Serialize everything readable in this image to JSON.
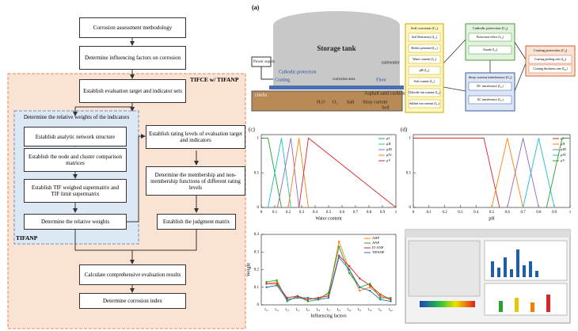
{
  "flowchart": {
    "boxes": [
      "Corrosion assessment methodology",
      "Determine influencing factors on corrosion",
      "Establish evaluation target and indicator sets",
      "Establish analytic network structure",
      "Establish the node and cluster comparison matrices",
      "Establish TIF weighed supermatrix and TIF limit supermatrix",
      "Determine the relative weights",
      "Establish rating levels of evaluation target and indicators",
      "Determine the membership and non-membership functions of different rating levels",
      "Establish the judgment matrix",
      "Calculate comprehensive evaluation results",
      "Determine corrosion index"
    ],
    "outer_label": "TIFCE w/ TIFANP",
    "inner_title": "Determine the relative weights of the indicators",
    "inner_label": "TIFANP"
  },
  "diagram_a": {
    "panel": "(a)",
    "labels": [
      "Storage tank",
      "Coating",
      "Floor",
      "rainwater",
      "Power supply",
      "Cathodic protection",
      "corrosion area",
      "Asphalt sand cushion",
      "cracks",
      "H₂O",
      "O₂",
      "Salt",
      "Stray current",
      "Soil"
    ]
  },
  "diagram_b": {
    "clusters": [
      {
        "title": "Soil corrosion (C₁)",
        "items": [
          "Soil Resistivity (I₁₁)",
          "Redox potential (I₁₂)",
          "Water content (I₁₃)",
          "pH (I₁₄)",
          "Salt content (I₁₅)",
          "Chloride ion content (I₁₆)",
          "Sulfate ion content (I₁₇)"
        ]
      },
      {
        "title": "Cathodic protection (C₂)",
        "items": [
          "Protection effect (I₂₁)",
          "Anode (I₂₂)"
        ]
      },
      {
        "title": "Stray current interference (C₃)",
        "items": [
          "DC interference (I₃₁)",
          "AC interference (I₃₂)"
        ]
      },
      {
        "title": "Coating protection (C₄)",
        "items": [
          "Coating peeling rate (I₄₁)",
          "Coating thickness rate (I₄₂)"
        ]
      }
    ]
  },
  "chart_data": [
    {
      "type": "line",
      "panel": "(c)",
      "x_label": "Water content",
      "xlim": [
        0,
        1
      ],
      "xticks": [
        0,
        0.1,
        0.2,
        0.3,
        0.4,
        0.5,
        0.6,
        0.7,
        0.8,
        0.9,
        1.0
      ],
      "ylim": [
        0,
        1.05
      ],
      "yticks": [
        0,
        0.5,
        1.0
      ],
      "series": [
        {
          "name": "μI",
          "color": "#2ca02c",
          "x": [
            0,
            0.05,
            0.15
          ],
          "values": [
            1,
            1,
            0
          ]
        },
        {
          "name": "μII",
          "color": "#17becf",
          "x": [
            0.05,
            0.15,
            0.22
          ],
          "values": [
            0,
            1,
            0
          ]
        },
        {
          "name": "μIII",
          "color": "#9467bd",
          "x": [
            0.12,
            0.22,
            0.28
          ],
          "values": [
            0,
            1,
            0
          ]
        },
        {
          "name": "μIV",
          "color": "#ff7f0e",
          "x": [
            0.2,
            0.28,
            0.35
          ],
          "values": [
            0,
            1,
            0
          ]
        },
        {
          "name": "μV",
          "color": "#d62728",
          "x": [
            0.28,
            0.35,
            1.0
          ],
          "values": [
            0,
            1,
            0
          ]
        }
      ]
    },
    {
      "type": "line",
      "panel": "(d)",
      "x_label": "pH",
      "xlim": [
        0,
        1
      ],
      "xticks": [
        0,
        0.1,
        0.2,
        0.3,
        0.4,
        0.5,
        0.6,
        0.7,
        0.8,
        0.9,
        1.0
      ],
      "ylim": [
        0,
        1.05
      ],
      "yticks": [
        0,
        0.5,
        1.0
      ],
      "series": [
        {
          "name": "μI",
          "color": "#d62728",
          "x": [
            0,
            0.45,
            0.55
          ],
          "values": [
            1,
            1,
            0
          ]
        },
        {
          "name": "μII",
          "color": "#ff7f0e",
          "x": [
            0.5,
            0.6,
            0.7
          ],
          "values": [
            0,
            1,
            0
          ]
        },
        {
          "name": "μIII",
          "color": "#9467bd",
          "x": [
            0.6,
            0.7,
            0.8
          ],
          "values": [
            0,
            1,
            0
          ]
        },
        {
          "name": "μIV",
          "color": "#17becf",
          "x": [
            0.7,
            0.8,
            0.9
          ],
          "values": [
            0,
            1,
            0
          ]
        },
        {
          "name": "μV",
          "color": "#2ca02c",
          "x": [
            0.85,
            0.95,
            1.0
          ],
          "values": [
            0,
            1,
            1
          ]
        }
      ]
    },
    {
      "type": "category-line",
      "y_label": "Weight",
      "x_label": "Influencing factors",
      "categories": [
        "I₁₁",
        "I₁₂",
        "I₁₃",
        "I₁₄",
        "I₁₅",
        "I₁₆",
        "I₁₇",
        "I₂₁",
        "I₂₂",
        "I₃₁",
        "I₃₂",
        "I₄₁",
        "I₄₂"
      ],
      "ylim": [
        0,
        0.4
      ],
      "yticks": [
        0,
        0.1,
        0.2,
        0.3,
        0.4
      ],
      "series": [
        {
          "name": "AHP",
          "color": "#ff7f0e",
          "values": [
            0.12,
            0.13,
            0.03,
            0.04,
            0.03,
            0.04,
            0.06,
            0.36,
            0.2,
            0.08,
            0.1,
            0.05,
            0.03
          ]
        },
        {
          "name": "ANP",
          "color": "#2ca02c",
          "values": [
            0.13,
            0.14,
            0.02,
            0.05,
            0.02,
            0.03,
            0.07,
            0.33,
            0.18,
            0.1,
            0.12,
            0.04,
            0.04
          ]
        },
        {
          "name": "IT-ANP",
          "color": "#d62728",
          "values": [
            0.12,
            0.12,
            0.04,
            0.05,
            0.03,
            0.04,
            0.05,
            0.28,
            0.22,
            0.15,
            0.11,
            0.06,
            0.03
          ]
        },
        {
          "name": "TIFANP",
          "color": "#1f77b4",
          "values": [
            0.1,
            0.11,
            0.03,
            0.04,
            0.04,
            0.03,
            0.04,
            0.27,
            0.2,
            0.1,
            0.08,
            0.03,
            0.02
          ]
        }
      ]
    }
  ]
}
